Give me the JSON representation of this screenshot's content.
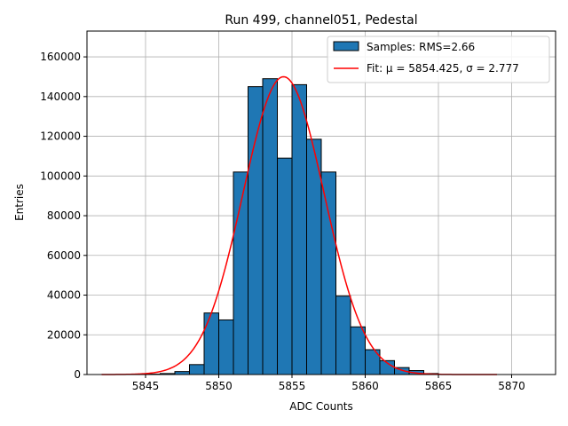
{
  "chart_data": {
    "type": "bar",
    "title": "Run 499, channel051, Pedestal",
    "xlabel": "ADC Counts",
    "ylabel": "Entries",
    "xlim": [
      5841,
      5873
    ],
    "ylim": [
      0,
      173000
    ],
    "xticks": [
      5845,
      5850,
      5855,
      5860,
      5865,
      5870
    ],
    "yticks": [
      0,
      20000,
      40000,
      60000,
      80000,
      100000,
      120000,
      140000,
      160000
    ],
    "grid": true,
    "legend_position": "upper-right",
    "legend": [
      "Samples: RMS=2.66",
      "Fit: μ = 5854.425, σ = 2.777"
    ],
    "bar_color": "#1f77b4",
    "fit_color": "#ff0000",
    "series": [
      {
        "name": "Samples: RMS=2.66",
        "bin_width": 1,
        "bin_left_edges": [
          5842,
          5843,
          5844,
          5845,
          5846,
          5847,
          5848,
          5849,
          5850,
          5851,
          5852,
          5853,
          5854,
          5855,
          5856,
          5857,
          5858,
          5859,
          5860,
          5861,
          5862,
          5863,
          5864,
          5865,
          5866,
          5867,
          5868
        ],
        "values": [
          0,
          0,
          0,
          200,
          500,
          1500,
          5000,
          31000,
          27500,
          102000,
          145000,
          149000,
          109000,
          146000,
          118500,
          102000,
          39500,
          24000,
          12500,
          7000,
          3500,
          2000,
          500,
          0,
          0,
          0,
          0
        ]
      },
      {
        "name": "Fit: μ = 5854.425, σ = 2.777",
        "type": "gaussian",
        "mu": 5854.425,
        "sigma": 2.777,
        "amplitude": 150000,
        "x_range": [
          5842,
          5869
        ]
      }
    ]
  }
}
